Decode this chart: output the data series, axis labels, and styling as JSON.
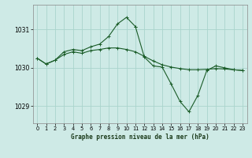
{
  "bg_color": "#ceeae6",
  "grid_color": "#aad4cc",
  "line_color": "#1a5c28",
  "xlabel": "Graphe pression niveau de la mer (hPa)",
  "xlim": [
    -0.5,
    23.5
  ],
  "ylim": [
    1028.55,
    1031.65
  ],
  "yticks": [
    1029,
    1030,
    1031
  ],
  "xticks": [
    0,
    1,
    2,
    3,
    4,
    5,
    6,
    7,
    8,
    9,
    10,
    11,
    12,
    13,
    14,
    15,
    16,
    17,
    18,
    19,
    20,
    21,
    22,
    23
  ],
  "line1_x": [
    0,
    1,
    2,
    3,
    4,
    5,
    6,
    7,
    8,
    9,
    10,
    11,
    12,
    13,
    14,
    15,
    16,
    17,
    18,
    19,
    20,
    21,
    22,
    23
  ],
  "line1_y": [
    1030.25,
    1030.1,
    1030.2,
    1030.35,
    1030.42,
    1030.38,
    1030.45,
    1030.48,
    1030.52,
    1030.52,
    1030.48,
    1030.42,
    1030.3,
    1030.18,
    1030.08,
    1030.02,
    1029.98,
    1029.95,
    1029.95,
    1029.96,
    1029.98,
    1029.97,
    1029.95,
    1029.93
  ],
  "line2_x": [
    0,
    1,
    2,
    3,
    4,
    5,
    6,
    7,
    8,
    9,
    10,
    11
  ],
  "line2_y": [
    1030.25,
    1030.1,
    1030.2,
    1030.42,
    1030.48,
    1030.45,
    1030.55,
    1030.62,
    1030.82,
    1031.15,
    1031.32,
    1031.08
  ],
  "line3_x": [
    11,
    12,
    13,
    14,
    15,
    16,
    17,
    18,
    19,
    20,
    21,
    22,
    23
  ],
  "line3_y": [
    1031.08,
    1030.28,
    1030.05,
    1030.02,
    1029.58,
    1029.12,
    1028.85,
    1029.28,
    1029.93,
    1030.05,
    1030.0,
    1029.95,
    1029.93
  ]
}
